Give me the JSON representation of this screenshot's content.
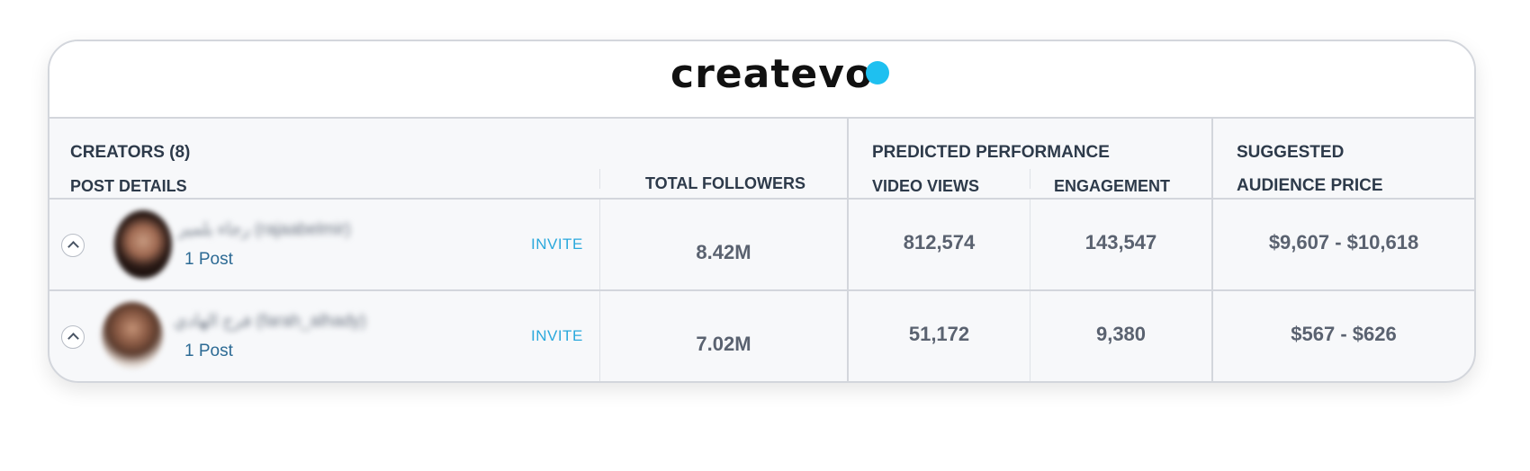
{
  "brand": {
    "logo_text": "createvo",
    "dot_color": "#1ec0f0"
  },
  "table": {
    "headers": {
      "creators": "CREATORS (8)",
      "post_details": "POST DETAILS",
      "total_followers": "TOTAL FOLLOWERS",
      "predicted_performance": "PREDICTED PERFORMANCE",
      "video_views": "VIDEO VIEWS",
      "engagement": "ENGAGEMENT",
      "suggested": "SUGGESTED",
      "audience_price": "AUDIENCE PRICE"
    },
    "rows": [
      {
        "name": "رجاء بلمير (rajaabelmir)",
        "posts": "1 Post",
        "invite": "INVITE",
        "followers": "8.42M",
        "video_views": "812,574",
        "engagement": "143,547",
        "price": "$9,607 - $10,618"
      },
      {
        "name": "فرح الهادي (farah_alhady)",
        "posts": "1 Post",
        "invite": "INVITE",
        "followers": "7.02M",
        "video_views": "51,172",
        "engagement": "9,380",
        "price": "$567 - $626"
      }
    ]
  }
}
